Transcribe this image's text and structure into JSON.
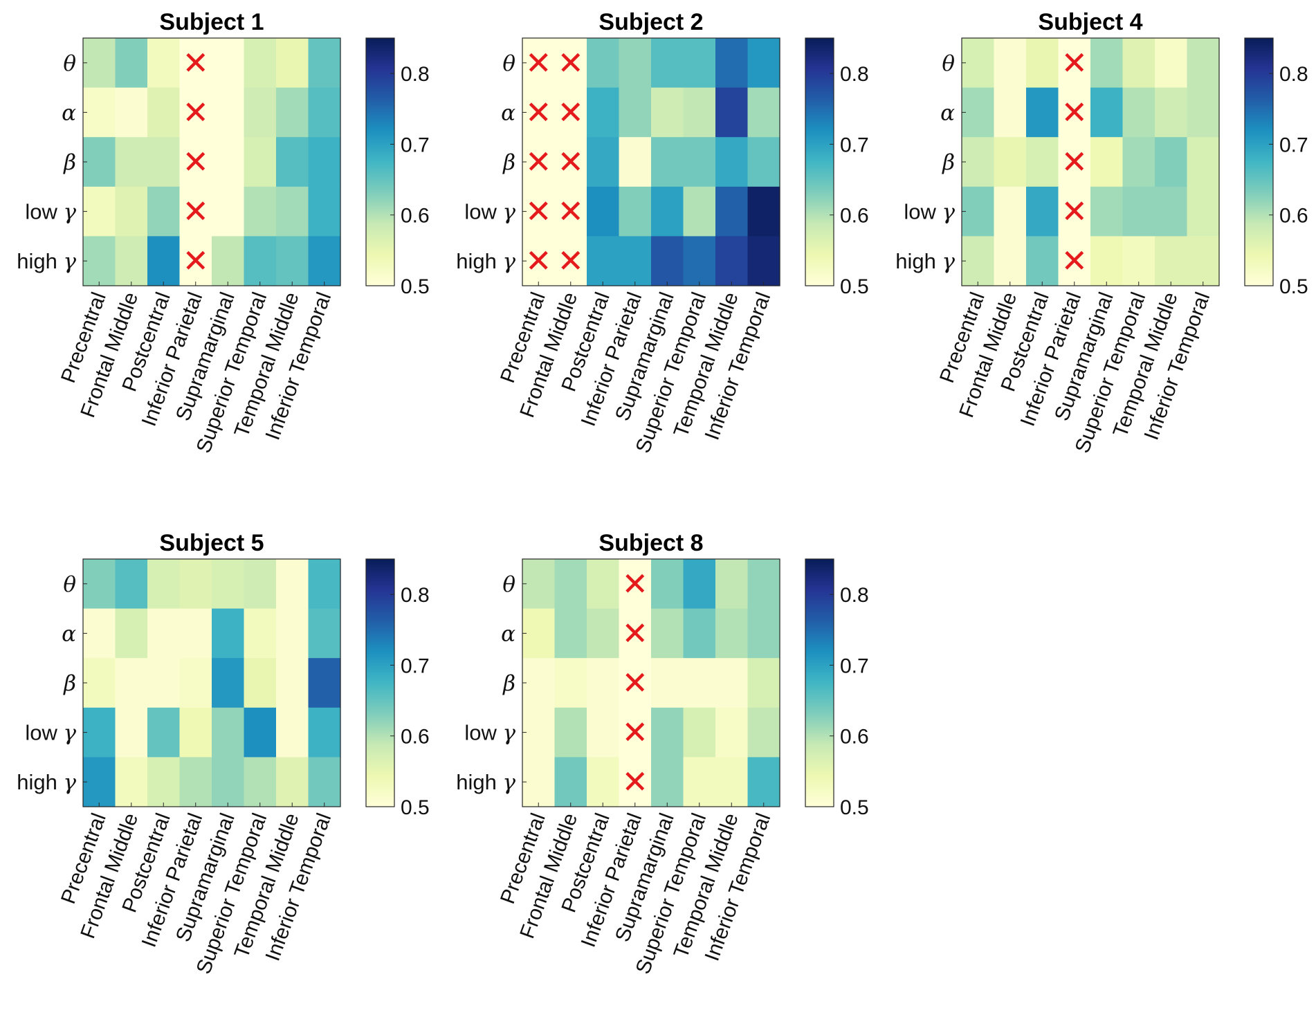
{
  "chart_data": {
    "type": "heatmap",
    "colormap": [
      "#ffffd9",
      "#edf8b1",
      "#c7e9b4",
      "#7fcdbb",
      "#41b6c4",
      "#1d91c0",
      "#225ea8",
      "#253494",
      "#081d58"
    ],
    "color_range": [
      0.5,
      0.85
    ],
    "colorbar_ticks": [
      "0.5",
      "0.6",
      "0.7",
      "0.8"
    ],
    "colorbar_tick_values": [
      0.5,
      0.6,
      0.7,
      0.8
    ],
    "rows": [
      {
        "greek": "θ"
      },
      {
        "greek": "α"
      },
      {
        "greek": "β"
      },
      {
        "prefix": "low",
        "greek": "γ"
      },
      {
        "prefix": "high",
        "greek": "γ"
      }
    ],
    "columns": [
      "Precentral",
      "Frontal Middle",
      "Postcentral",
      "Inferior Parietal",
      "Supramarginal",
      "Superior Temporal",
      "Temporal Middle",
      "Inferior Temporal"
    ],
    "missing_marker": "✕",
    "panels": [
      {
        "title": "Subject 1",
        "values": [
          [
            0.59,
            0.63,
            0.53,
            0.5,
            0.5,
            0.57,
            0.55,
            0.65
          ],
          [
            0.52,
            0.51,
            0.56,
            0.5,
            0.5,
            0.58,
            0.61,
            0.66
          ],
          [
            0.63,
            0.58,
            0.58,
            0.5,
            0.5,
            0.57,
            0.66,
            0.68
          ],
          [
            0.53,
            0.56,
            0.62,
            0.5,
            0.5,
            0.6,
            0.61,
            0.68
          ],
          [
            0.61,
            0.58,
            0.72,
            0.5,
            0.59,
            0.66,
            0.65,
            0.71
          ]
        ],
        "missing": [
          [
            0,
            3
          ],
          [
            1,
            3
          ],
          [
            2,
            3
          ],
          [
            3,
            3
          ],
          [
            4,
            3
          ]
        ]
      },
      {
        "title": "Subject 2",
        "values": [
          [
            0.5,
            0.5,
            0.64,
            0.62,
            0.66,
            0.66,
            0.75,
            0.71
          ],
          [
            0.5,
            0.5,
            0.68,
            0.62,
            0.58,
            0.59,
            0.79,
            0.61
          ],
          [
            0.5,
            0.5,
            0.69,
            0.51,
            0.64,
            0.64,
            0.69,
            0.65
          ],
          [
            0.5,
            0.5,
            0.72,
            0.63,
            0.7,
            0.6,
            0.76,
            0.84
          ],
          [
            0.5,
            0.5,
            0.7,
            0.7,
            0.77,
            0.75,
            0.79,
            0.83
          ]
        ],
        "missing": [
          [
            0,
            0
          ],
          [
            0,
            1
          ],
          [
            1,
            0
          ],
          [
            1,
            1
          ],
          [
            2,
            0
          ],
          [
            2,
            1
          ],
          [
            3,
            0
          ],
          [
            3,
            1
          ],
          [
            4,
            0
          ],
          [
            4,
            1
          ]
        ]
      },
      {
        "title": "Subject 4",
        "values": [
          [
            0.57,
            0.51,
            0.55,
            0.5,
            0.61,
            0.56,
            0.52,
            0.59
          ],
          [
            0.61,
            0.51,
            0.71,
            0.5,
            0.68,
            0.6,
            0.58,
            0.59
          ],
          [
            0.58,
            0.55,
            0.57,
            0.5,
            0.54,
            0.61,
            0.63,
            0.57
          ],
          [
            0.63,
            0.51,
            0.69,
            0.5,
            0.61,
            0.62,
            0.62,
            0.57
          ],
          [
            0.58,
            0.51,
            0.64,
            0.5,
            0.54,
            0.53,
            0.56,
            0.56
          ]
        ],
        "missing": [
          [
            0,
            3
          ],
          [
            1,
            3
          ],
          [
            2,
            3
          ],
          [
            3,
            3
          ],
          [
            4,
            3
          ]
        ]
      },
      {
        "title": "Subject 5",
        "values": [
          [
            0.63,
            0.66,
            0.57,
            0.56,
            0.57,
            0.58,
            0.51,
            0.67
          ],
          [
            0.51,
            0.57,
            0.51,
            0.51,
            0.68,
            0.53,
            0.51,
            0.66
          ],
          [
            0.53,
            0.51,
            0.51,
            0.52,
            0.71,
            0.55,
            0.51,
            0.76
          ],
          [
            0.68,
            0.51,
            0.65,
            0.54,
            0.62,
            0.72,
            0.51,
            0.68
          ],
          [
            0.71,
            0.53,
            0.57,
            0.6,
            0.62,
            0.6,
            0.56,
            0.64
          ]
        ],
        "missing": []
      },
      {
        "title": "Subject 8",
        "values": [
          [
            0.59,
            0.61,
            0.57,
            0.5,
            0.63,
            0.69,
            0.59,
            0.62
          ],
          [
            0.54,
            0.61,
            0.59,
            0.5,
            0.6,
            0.64,
            0.6,
            0.62
          ],
          [
            0.51,
            0.52,
            0.51,
            0.5,
            0.51,
            0.51,
            0.51,
            0.57
          ],
          [
            0.51,
            0.6,
            0.51,
            0.5,
            0.62,
            0.57,
            0.52,
            0.59
          ],
          [
            0.51,
            0.64,
            0.53,
            0.5,
            0.62,
            0.53,
            0.53,
            0.67
          ]
        ],
        "missing": [
          [
            0,
            3
          ],
          [
            1,
            3
          ],
          [
            2,
            3
          ],
          [
            3,
            3
          ],
          [
            4,
            3
          ]
        ]
      }
    ]
  }
}
